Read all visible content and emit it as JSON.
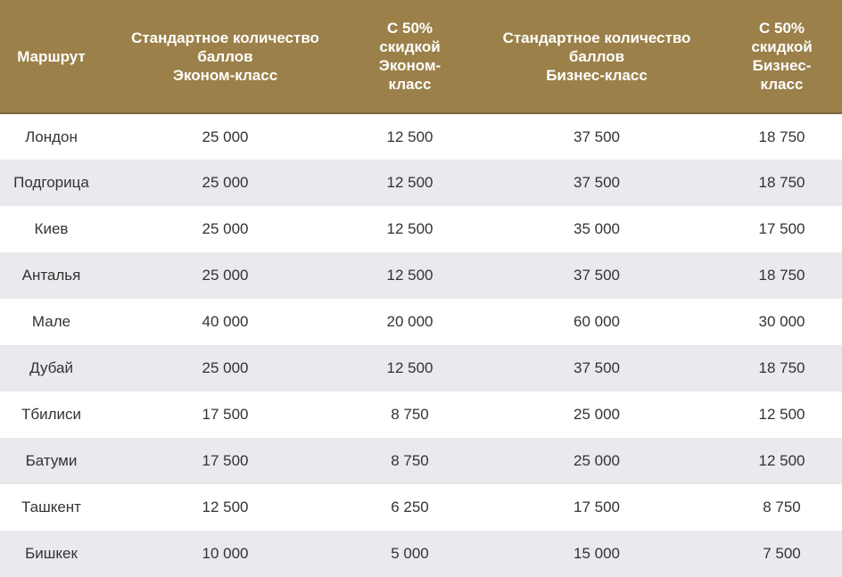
{
  "table": {
    "headers": [
      "Маршрут",
      "Стандартное количество\nбаллов\nЭконом-класс",
      "С 50%\nскидкой\nЭконом-\nкласс",
      "Стандартное количество\nбаллов\nБизнес-класс",
      "С 50%\nскидкой\nБизнес-\nкласс"
    ],
    "rows": [
      [
        "Лондон",
        "25 000",
        "12 500",
        "37 500",
        "18 750"
      ],
      [
        "Подгорица",
        "25 000",
        "12 500",
        "37 500",
        "18 750"
      ],
      [
        "Киев",
        "25 000",
        "12 500",
        "35 000",
        "17 500"
      ],
      [
        "Анталья",
        "25 000",
        "12 500",
        "37 500",
        "18 750"
      ],
      [
        "Мале",
        "40 000",
        "20 000",
        "60 000",
        "30 000"
      ],
      [
        "Дубай",
        "25 000",
        "12 500",
        "37 500",
        "18 750"
      ],
      [
        "Тбилиси",
        "17 500",
        "8 750",
        "25 000",
        "12 500"
      ],
      [
        "Батуми",
        "17 500",
        "8 750",
        "25 000",
        "12 500"
      ],
      [
        "Ташкент",
        "12 500",
        "6 250",
        "17 500",
        "8 750"
      ],
      [
        "Бишкек",
        "10 000",
        "5 000",
        "15 000",
        "7 500"
      ]
    ]
  },
  "colors": {
    "header_bg": "#9b8049",
    "stripe_bg": "#e9e9ee"
  }
}
